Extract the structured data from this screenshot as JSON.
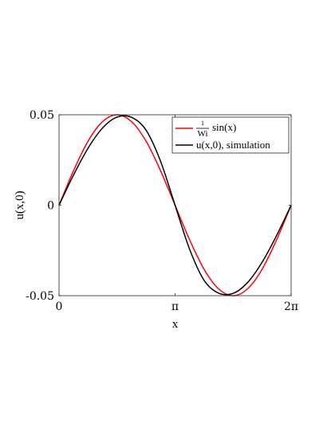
{
  "chart_data": {
    "type": "line",
    "title": "",
    "xlabel": "x",
    "ylabel": "u(x,0)",
    "xlim": [
      0,
      6.283185307
    ],
    "ylim": [
      -0.05,
      0.05
    ],
    "xticks": [
      {
        "value": 0,
        "label": "0"
      },
      {
        "value": 3.141592654,
        "label": "π"
      },
      {
        "value": 6.283185307,
        "label": "2π"
      }
    ],
    "yticks": [
      {
        "value": 0.05,
        "label": "0.05"
      },
      {
        "value": 0,
        "label": "0"
      },
      {
        "value": -0.05,
        "label": "-0.05"
      }
    ],
    "grid": false,
    "legend_position": "top-right",
    "series": [
      {
        "name": "1/Wi sin(x)",
        "legend_label": {
          "fraction_num": "1",
          "fraction_den": "Wi",
          "suffix": "sin(x)"
        },
        "color": "#ff0000",
        "x": [
          0,
          0.3927,
          0.7854,
          1.1781,
          1.5708,
          1.9635,
          2.3562,
          2.7489,
          3.1416,
          3.5343,
          3.927,
          4.3197,
          4.7124,
          5.1051,
          5.4978,
          5.8905,
          6.2832
        ],
        "y": [
          0,
          0.0191,
          0.0354,
          0.0462,
          0.05,
          0.0462,
          0.0354,
          0.0191,
          0,
          -0.0191,
          -0.0354,
          -0.0462,
          -0.05,
          -0.0462,
          -0.0354,
          -0.0191,
          0
        ]
      },
      {
        "name": "u(x,0), simulation",
        "color": "#000000",
        "x": [
          0,
          0.3927,
          0.7854,
          1.1781,
          1.5708,
          1.9635,
          2.3562,
          2.7489,
          3.1416,
          3.5343,
          3.927,
          4.3197,
          4.7124,
          5.1051,
          5.4978,
          5.8905,
          6.2832
        ],
        "y": [
          0,
          0.0167,
          0.0315,
          0.0427,
          0.0487,
          0.0486,
          0.0415,
          0.0243,
          0,
          -0.0243,
          -0.0415,
          -0.0486,
          -0.0487,
          -0.0427,
          -0.0315,
          -0.0167,
          0
        ]
      }
    ]
  }
}
